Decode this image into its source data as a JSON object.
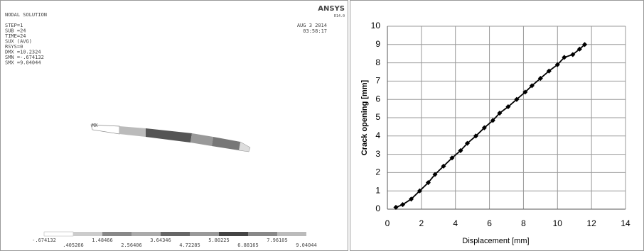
{
  "ansys": {
    "header": "NODAL SOLUTION",
    "info": [
      "STEP=1",
      "SUB =24",
      "TIME=24",
      "SUX      (AVG)",
      "RSYS=0",
      "DMX =10.2324",
      "SMN =-.674132",
      "SMX =9.04044"
    ],
    "brand": "ANSYS",
    "release": "R14.0",
    "date": "AUG  3 2014",
    "time": "03:58:17",
    "max_label": "MX",
    "legend_top": [
      "-.674132",
      "1.48466",
      "3.64346",
      "5.80225",
      "7.96105"
    ],
    "legend_bottom": [
      ".405266",
      "2.56406",
      "4.72285",
      "6.88165",
      "9.04044"
    ]
  },
  "chart_data": {
    "type": "line",
    "x_label": "Displacement [mm]",
    "y_label": "Crack opening [mm]",
    "series": [
      {
        "color": "#000000",
        "x": [
          0.5,
          0.9,
          1.4,
          1.9,
          2.4,
          2.8,
          3.3,
          3.8,
          4.3,
          4.7,
          5.2,
          5.7,
          6.2,
          6.6,
          7.1,
          7.6,
          8.1,
          8.5,
          9.0,
          9.5,
          10.0,
          10.4,
          10.9,
          11.3,
          11.6
        ],
        "values": [
          0.1,
          0.25,
          0.55,
          1.0,
          1.45,
          1.9,
          2.35,
          2.8,
          3.2,
          3.6,
          4.0,
          4.45,
          4.85,
          5.25,
          5.6,
          6.0,
          6.4,
          6.75,
          7.15,
          7.55,
          7.9,
          8.3,
          8.45,
          8.75,
          9.0
        ]
      }
    ],
    "xlim": [
      0,
      14
    ],
    "xticks": [
      0,
      2,
      4,
      6,
      8,
      10,
      12,
      14
    ],
    "ylim": [
      0,
      10
    ],
    "yticks": [
      0,
      1,
      2,
      3,
      4,
      5,
      6,
      7,
      8,
      9,
      10
    ],
    "grid": true
  }
}
